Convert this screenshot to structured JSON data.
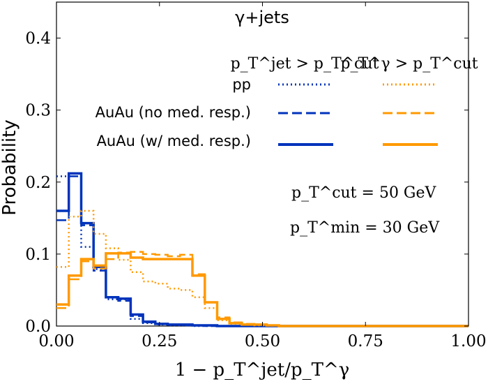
{
  "chart_data": {
    "type": "step",
    "title": "γ+jets",
    "xlabel": "1 − p_T^jet/p_T^γ",
    "ylabel": "Probability",
    "xlim": [
      0.0,
      1.0
    ],
    "ylim": [
      0.0,
      0.45
    ],
    "xticks": [
      "0.00",
      "0.25",
      "0.50",
      "0.75",
      "1.00"
    ],
    "yticks": [
      "0.0",
      "0.1",
      "0.2",
      "0.3",
      "0.4"
    ],
    "bin_edges": [
      0.0,
      0.03,
      0.06,
      0.09,
      0.12,
      0.15,
      0.18,
      0.21,
      0.24,
      0.27,
      0.3,
      0.33,
      0.36,
      0.39,
      0.42,
      0.45,
      0.48,
      0.51,
      0.54,
      0.57,
      0.6,
      1.0
    ],
    "legend": {
      "col_headers": [
        "p_T^jet > p_T^cut",
        "p_T^γ > p_T^cut"
      ],
      "row_labels": [
        "pp",
        "AuAu (no med. resp.)",
        "AuAu (w/ med. resp.)"
      ],
      "placement": "top-right"
    },
    "annotations": [
      "p_T^cut = 50 GeV",
      "p_T^min = 30 GeV"
    ],
    "colors": {
      "jet": "#0033bb",
      "photon": "#ff9900"
    },
    "series": [
      {
        "group": "jet",
        "style": "dotted",
        "values": [
          0.208,
          0.212,
          0.11,
          0.079,
          0.037,
          0.037,
          0.01,
          0.004,
          0.002,
          0.001,
          0.001,
          0.0,
          0.0,
          0.0,
          0.0,
          0.0,
          0.0,
          0.0,
          0.0,
          0.0,
          0.0
        ]
      },
      {
        "group": "jet",
        "style": "dashed",
        "values": [
          0.147,
          0.208,
          0.14,
          0.077,
          0.04,
          0.035,
          0.014,
          0.005,
          0.003,
          0.002,
          0.001,
          0.001,
          0.0,
          0.0,
          0.0,
          0.0,
          0.0,
          0.0,
          0.0,
          0.0,
          0.0
        ]
      },
      {
        "group": "jet",
        "style": "solid",
        "values": [
          0.16,
          0.212,
          0.143,
          0.082,
          0.04,
          0.038,
          0.016,
          0.006,
          0.003,
          0.002,
          0.002,
          0.001,
          0.001,
          0.0,
          0.0,
          0.0,
          0.0,
          0.0,
          0.0,
          0.0,
          0.0
        ]
      },
      {
        "group": "photon",
        "style": "dotted",
        "values": [
          0.082,
          0.152,
          0.16,
          0.128,
          0.108,
          0.092,
          0.075,
          0.062,
          0.059,
          0.052,
          0.05,
          0.04,
          0.025,
          0.008,
          0.003,
          0.002,
          0.001,
          0.001,
          0.0,
          0.0,
          0.0
        ]
      },
      {
        "group": "photon",
        "style": "dashed",
        "values": [
          0.025,
          0.065,
          0.09,
          0.08,
          0.093,
          0.102,
          0.103,
          0.1,
          0.099,
          0.097,
          0.099,
          0.072,
          0.033,
          0.012,
          0.005,
          0.003,
          0.002,
          0.001,
          0.0,
          0.0,
          0.0
        ]
      },
      {
        "group": "photon",
        "style": "solid",
        "values": [
          0.03,
          0.07,
          0.093,
          0.084,
          0.101,
          0.101,
          0.095,
          0.093,
          0.093,
          0.093,
          0.093,
          0.07,
          0.033,
          0.01,
          0.004,
          0.002,
          0.002,
          0.001,
          0.0,
          0.0,
          0.0
        ]
      }
    ]
  }
}
